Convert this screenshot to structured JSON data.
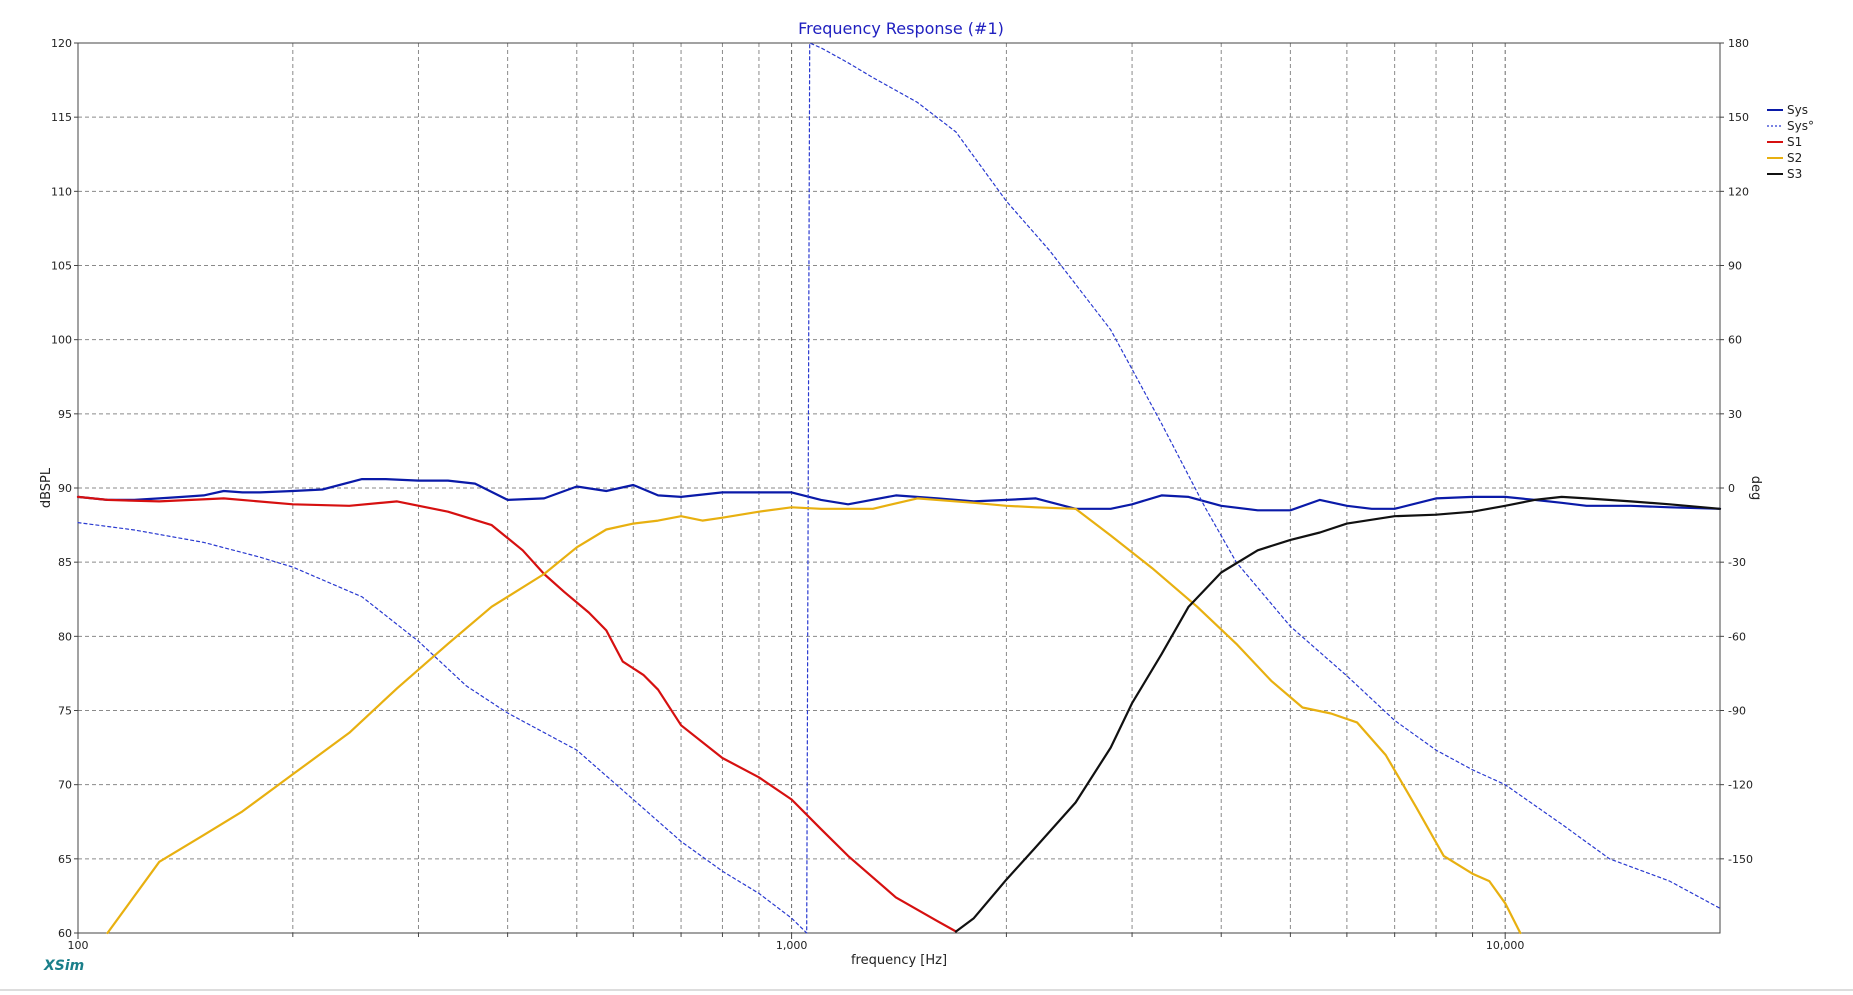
{
  "chart_data": {
    "type": "line",
    "title": "Frequency Response (#1)",
    "xlabel": "frequency [Hz]",
    "ylabel": "dBSPL",
    "y2label": "deg",
    "xscale": "log",
    "xlim": [
      100,
      20000
    ],
    "ylim": [
      60,
      120
    ],
    "y2lim": [
      -180,
      180
    ],
    "x_major_ticks": [
      {
        "value": 100,
        "label": "100"
      },
      {
        "value": 1000,
        "label": "1,000"
      },
      {
        "value": 10000,
        "label": "10,000"
      }
    ],
    "x_minor_ticks": [
      200,
      300,
      400,
      500,
      600,
      700,
      800,
      900,
      2000,
      3000,
      4000,
      5000,
      6000,
      7000,
      8000,
      9000
    ],
    "y_ticks": [
      {
        "value": 60,
        "label": "60"
      },
      {
        "value": 65,
        "label": "65"
      },
      {
        "value": 70,
        "label": "70"
      },
      {
        "value": 75,
        "label": "75"
      },
      {
        "value": 80,
        "label": "80"
      },
      {
        "value": 85,
        "label": "85"
      },
      {
        "value": 90,
        "label": "90"
      },
      {
        "value": 95,
        "label": "95"
      },
      {
        "value": 100,
        "label": "100"
      },
      {
        "value": 105,
        "label": "105"
      },
      {
        "value": 110,
        "label": "110"
      },
      {
        "value": 115,
        "label": "115"
      },
      {
        "value": 120,
        "label": "120"
      }
    ],
    "y2_ticks": [
      {
        "value": 180,
        "label": "180"
      },
      {
        "value": 150,
        "label": "150"
      },
      {
        "value": 120,
        "label": "120"
      },
      {
        "value": 90,
        "label": "90"
      },
      {
        "value": 60,
        "label": "60"
      },
      {
        "value": 30,
        "label": "30"
      },
      {
        "value": 0,
        "label": "0"
      },
      {
        "value": -30,
        "label": "-30"
      },
      {
        "value": -60,
        "label": "-60"
      },
      {
        "value": -90,
        "label": "-90"
      },
      {
        "value": -120,
        "label": "-120"
      },
      {
        "value": -150,
        "label": "-150"
      }
    ],
    "grid": true,
    "legend_position": "top-right",
    "series": [
      {
        "name": "Sys",
        "color": "#0a1aa8",
        "dash": false,
        "axis": "left",
        "x": [
          100,
          110,
          120,
          130,
          140,
          150,
          160,
          170,
          180,
          200,
          220,
          250,
          270,
          300,
          330,
          360,
          400,
          450,
          500,
          550,
          600,
          650,
          700,
          800,
          900,
          1000,
          1100,
          1200,
          1400,
          1600,
          1800,
          2000,
          2200,
          2500,
          2800,
          3000,
          3300,
          3600,
          4000,
          4500,
          5000,
          5500,
          6000,
          6500,
          7000,
          8000,
          9000,
          10000,
          11000,
          12000,
          13000,
          15000,
          17000,
          20000
        ],
        "y": [
          89.4,
          89.2,
          89.2,
          89.3,
          89.4,
          89.5,
          89.8,
          89.7,
          89.7,
          89.8,
          89.9,
          90.6,
          90.6,
          90.5,
          90.5,
          90.3,
          89.2,
          89.3,
          90.1,
          89.8,
          90.2,
          89.5,
          89.4,
          89.7,
          89.7,
          89.7,
          89.2,
          88.9,
          89.5,
          89.3,
          89.1,
          89.2,
          89.3,
          88.6,
          88.6,
          88.9,
          89.5,
          89.4,
          88.8,
          88.5,
          88.5,
          89.2,
          88.8,
          88.6,
          88.6,
          89.3,
          89.4,
          89.4,
          89.2,
          89.0,
          88.8,
          88.8,
          88.7,
          88.6
        ]
      },
      {
        "name": "Sys°",
        "color": "#2a3ad0",
        "dash": true,
        "axis": "right",
        "x": [
          100,
          120,
          150,
          180,
          200,
          250,
          300,
          350,
          400,
          500,
          600,
          700,
          800,
          900,
          1000,
          1050,
          1060,
          1100,
          1200,
          1300,
          1500,
          1700,
          2000,
          2300,
          2800,
          3300,
          3800,
          4200,
          5000,
          6000,
          7000,
          8000,
          9000,
          10000,
          12000,
          14000,
          17000,
          20000
        ],
        "y": [
          -14,
          -17,
          -22,
          -28,
          -32,
          -44,
          -62,
          -80,
          -91,
          -106,
          -126,
          -143,
          -155,
          -164,
          -174,
          -180,
          180,
          178,
          172,
          166,
          156,
          144,
          116,
          96,
          64,
          26,
          -8,
          -30,
          -56,
          -76,
          -94,
          -106,
          -114,
          -120,
          -136,
          -150,
          -159,
          -170
        ]
      },
      {
        "name": "S1",
        "color": "#d61010",
        "dash": false,
        "axis": "left",
        "x": [
          100,
          110,
          130,
          160,
          200,
          240,
          280,
          330,
          380,
          420,
          450,
          480,
          520,
          550,
          580,
          620,
          650,
          700,
          800,
          900,
          1000,
          1100,
          1200,
          1400,
          1600,
          1700
        ],
        "y": [
          89.4,
          89.2,
          89.1,
          89.3,
          88.9,
          88.8,
          89.1,
          88.4,
          87.5,
          85.8,
          84.2,
          83.0,
          81.6,
          80.4,
          78.3,
          77.4,
          76.4,
          74.0,
          71.8,
          70.5,
          69.0,
          67.0,
          65.2,
          62.4,
          60.8,
          60.1
        ]
      },
      {
        "name": "S2",
        "color": "#e8b010",
        "dash": false,
        "axis": "left",
        "x": [
          110,
          120,
          130,
          150,
          170,
          200,
          240,
          280,
          330,
          380,
          450,
          500,
          550,
          600,
          650,
          700,
          750,
          800,
          900,
          1000,
          1100,
          1300,
          1500,
          1800,
          2000,
          2200,
          2500,
          2800,
          3200,
          3700,
          4200,
          4700,
          5200,
          5700,
          6200,
          6800,
          7500,
          8200,
          9000,
          9500,
          10000,
          10500
        ],
        "y": [
          60.0,
          62.5,
          64.8,
          66.6,
          68.2,
          70.7,
          73.5,
          76.5,
          79.5,
          82.0,
          84.2,
          86.0,
          87.2,
          87.6,
          87.8,
          88.1,
          87.8,
          88.0,
          88.4,
          88.7,
          88.6,
          88.6,
          89.3,
          89.0,
          88.8,
          88.7,
          88.6,
          86.8,
          84.6,
          82.0,
          79.5,
          77.0,
          75.2,
          74.8,
          74.2,
          72.0,
          68.5,
          65.2,
          64.0,
          63.5,
          62.0,
          60.0
        ]
      },
      {
        "name": "S3",
        "color": "#111111",
        "dash": false,
        "axis": "left",
        "x": [
          1700,
          1800,
          2000,
          2200,
          2500,
          2800,
          3000,
          3300,
          3600,
          4000,
          4500,
          5000,
          5500,
          6000,
          7000,
          8000,
          9000,
          10000,
          11000,
          12000,
          13000,
          15000,
          17000,
          20000
        ],
        "y": [
          60.1,
          61.0,
          63.6,
          65.8,
          68.8,
          72.5,
          75.5,
          78.8,
          82.0,
          84.3,
          85.8,
          86.5,
          87.0,
          87.6,
          88.1,
          88.2,
          88.4,
          88.8,
          89.2,
          89.4,
          89.3,
          89.1,
          88.9,
          88.6
        ]
      }
    ]
  },
  "brand": "XSim"
}
